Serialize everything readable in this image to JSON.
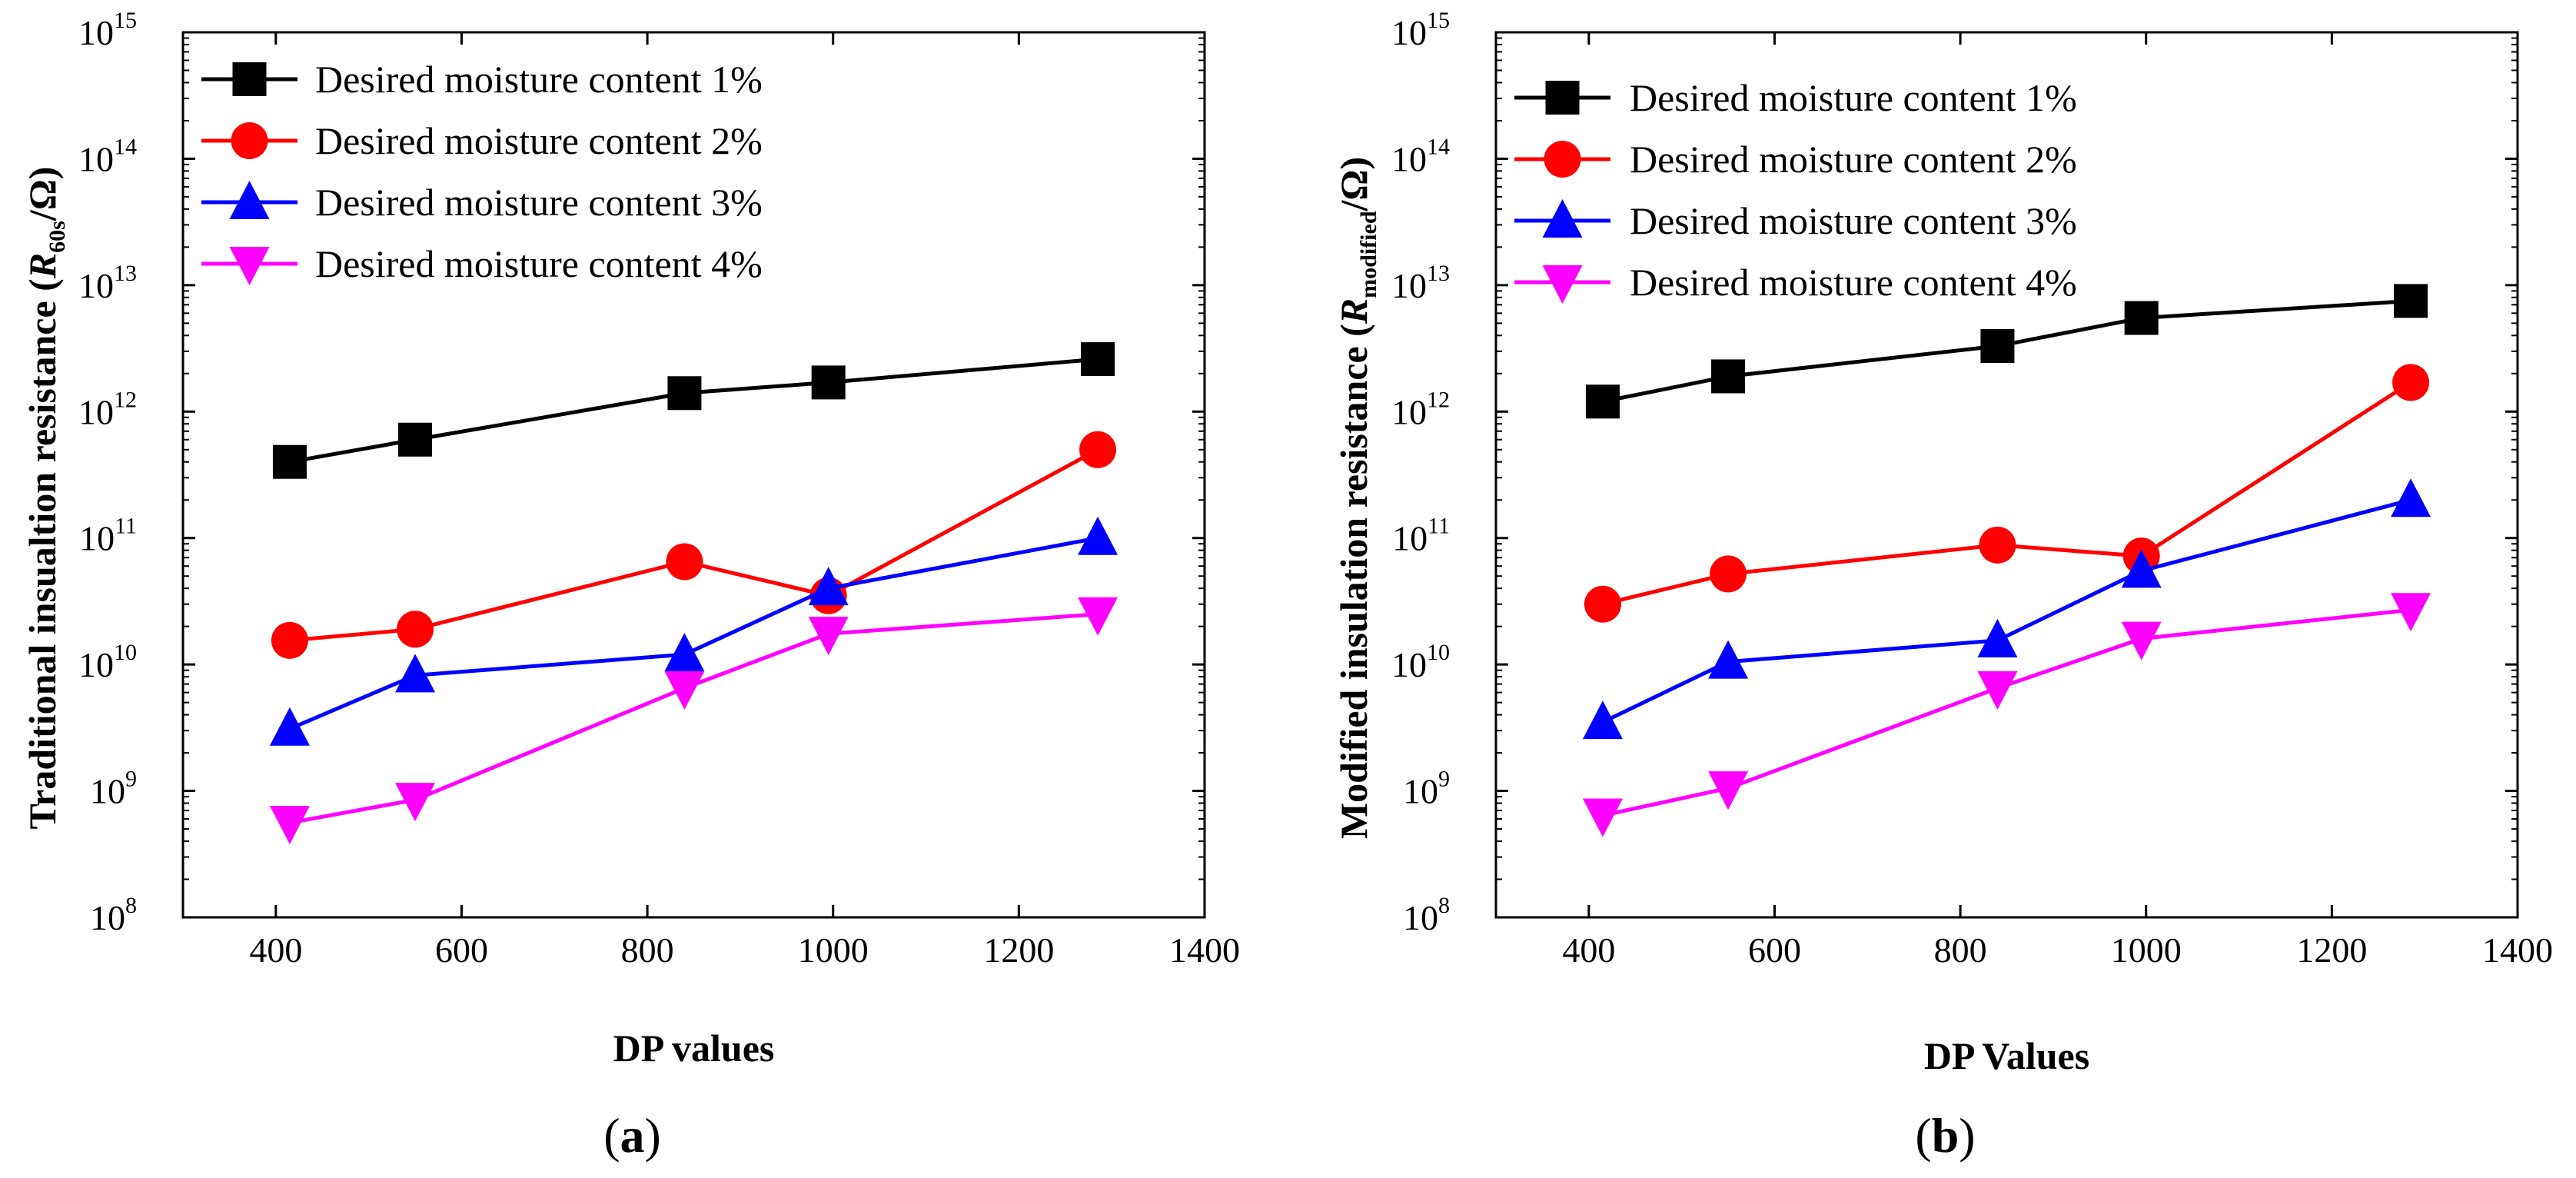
{
  "chart_data": [
    {
      "type": "line",
      "panel_label": "(a)",
      "panel_letter": "a",
      "xlabel": "DP values",
      "ylabel": {
        "prefix": "Traditional insualtion resistance (",
        "symbol": "R",
        "subscript": "60s",
        "suffix": "/Ω)"
      },
      "x_scale": "linear",
      "y_scale": "log",
      "xlim": [
        300,
        1400
      ],
      "ylim": [
        100000000,
        1000000000000000
      ],
      "x_ticks": [
        400,
        600,
        800,
        1000,
        1200,
        1400
      ],
      "y_ticks": [
        {
          "value": 100000000,
          "base": "10",
          "exp": "8"
        },
        {
          "value": 1000000000,
          "base": "10",
          "exp": "9"
        },
        {
          "value": 10000000000,
          "base": "10",
          "exp": "10"
        },
        {
          "value": 100000000000,
          "base": "10",
          "exp": "11"
        },
        {
          "value": 1000000000000,
          "base": "10",
          "exp": "12"
        },
        {
          "value": 10000000000000,
          "base": "10",
          "exp": "13"
        },
        {
          "value": 100000000000000,
          "base": "10",
          "exp": "14"
        },
        {
          "value": 1000000000000000,
          "base": "10",
          "exp": "15"
        }
      ],
      "legend_position": "top-left",
      "x": [
        415,
        550,
        840,
        995,
        1285
      ],
      "series": [
        {
          "name": "Desired moisture content 1%",
          "color": "#000000",
          "marker": "square",
          "values": [
            400000000000,
            600000000000,
            1400000000000,
            1700000000000,
            2600000000000
          ]
        },
        {
          "name": "Desired moisture content 2%",
          "color": "#ff0000",
          "marker": "circle",
          "values": [
            15500000000,
            19000000000,
            65000000000,
            35000000000,
            500000000000
          ]
        },
        {
          "name": "Desired moisture content 3%",
          "color": "#0000ff",
          "marker": "triangle-up",
          "values": [
            3100000000,
            8200000000,
            12000000000,
            40000000000,
            100000000000
          ]
        },
        {
          "name": "Desired moisture content 4%",
          "color": "#ff00ff",
          "marker": "triangle-down",
          "values": [
            560000000,
            850000000,
            6500000000,
            17500000000,
            25000000000
          ]
        }
      ]
    },
    {
      "type": "line",
      "panel_label": "(b)",
      "panel_letter": "b",
      "xlabel": "DP Values",
      "ylabel": {
        "prefix": "Modified insulation resistance (",
        "symbol": "R",
        "subscript": "modified",
        "suffix": "/Ω)"
      },
      "x_scale": "linear",
      "y_scale": "log",
      "xlim": [
        300,
        1400
      ],
      "ylim": [
        100000000,
        1000000000000000
      ],
      "x_ticks": [
        400,
        600,
        800,
        1000,
        1200,
        1400
      ],
      "y_ticks": [
        {
          "value": 100000000,
          "base": "10",
          "exp": "8"
        },
        {
          "value": 1000000000,
          "base": "10",
          "exp": "9"
        },
        {
          "value": 10000000000,
          "base": "10",
          "exp": "10"
        },
        {
          "value": 100000000000,
          "base": "10",
          "exp": "11"
        },
        {
          "value": 1000000000000,
          "base": "10",
          "exp": "12"
        },
        {
          "value": 10000000000000,
          "base": "10",
          "exp": "13"
        },
        {
          "value": 100000000000000,
          "base": "10",
          "exp": "14"
        },
        {
          "value": 1000000000000000,
          "base": "10",
          "exp": "15"
        }
      ],
      "legend_position": "top-left",
      "x": [
        415,
        550,
        840,
        995,
        1285
      ],
      "series": [
        {
          "name": "Desired moisture content  1%",
          "color": "#000000",
          "marker": "square",
          "values": [
            1200000000000,
            1900000000000,
            3300000000000,
            5500000000000,
            7500000000000
          ]
        },
        {
          "name": "Desired moisture content  2%",
          "color": "#ff0000",
          "marker": "circle",
          "values": [
            30000000000,
            52000000000,
            88000000000,
            72000000000,
            1700000000000
          ]
        },
        {
          "name": "Desired moisture content  3%",
          "color": "#0000ff",
          "marker": "triangle-up",
          "values": [
            3500000000,
            10500000000,
            15500000000,
            55000000000,
            200000000000
          ]
        },
        {
          "name": "Desired moisture content  4%",
          "color": "#ff00ff",
          "marker": "triangle-down",
          "values": [
            640000000,
            1050000000,
            6500000000,
            16000000000,
            27000000000
          ]
        }
      ]
    }
  ]
}
